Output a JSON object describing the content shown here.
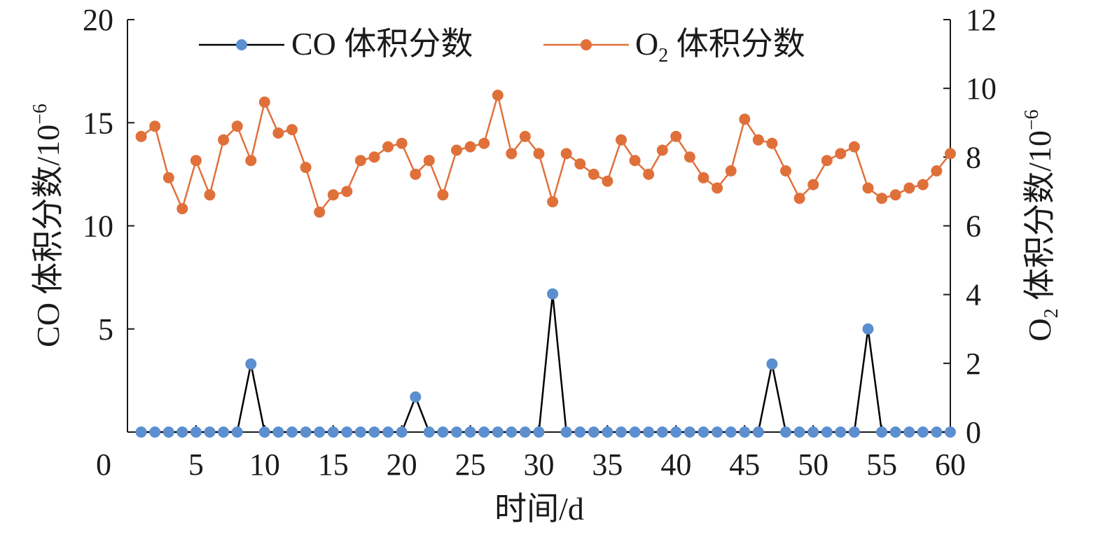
{
  "chart_data": {
    "type": "line",
    "x": [
      1,
      2,
      3,
      4,
      5,
      6,
      7,
      8,
      9,
      10,
      11,
      12,
      13,
      14,
      15,
      16,
      17,
      18,
      19,
      20,
      21,
      22,
      23,
      24,
      25,
      26,
      27,
      28,
      29,
      30,
      31,
      32,
      33,
      34,
      35,
      36,
      37,
      38,
      39,
      40,
      41,
      42,
      43,
      44,
      45,
      46,
      47,
      48,
      49,
      50,
      51,
      52,
      53,
      54,
      55,
      56,
      57,
      58,
      59,
      60
    ],
    "xlabel": "时间/d",
    "xlim": [
      0,
      60
    ],
    "x_ticks": [
      "0",
      "5",
      "10",
      "15",
      "20",
      "25",
      "30",
      "35",
      "40",
      "45",
      "50",
      "55",
      "60"
    ],
    "y_left": {
      "label": "CO 体积分数/10",
      "label_sup": "−6",
      "lim": [
        0,
        20
      ],
      "ticks": [
        "5",
        "10",
        "15",
        "20"
      ]
    },
    "y_right": {
      "label_main": "O",
      "label_sub": "2",
      "label_rest": " 体积分数/10",
      "label_sup": "−6",
      "lim": [
        0,
        12
      ],
      "ticks": [
        "0",
        "2",
        "4",
        "6",
        "8",
        "10",
        "12"
      ]
    },
    "series": [
      {
        "name": "CO 体积分数",
        "axis": "left",
        "color": "#000000",
        "marker_color": "#5b8fcf",
        "values": [
          0,
          0,
          0,
          0,
          0,
          0,
          0,
          0,
          3.3,
          0,
          0,
          0,
          0,
          0,
          0,
          0,
          0,
          0,
          0,
          0,
          1.7,
          0,
          0,
          0,
          0,
          0,
          0,
          0,
          0,
          0,
          6.7,
          0,
          0,
          0,
          0,
          0,
          0,
          0,
          0,
          0,
          0,
          0,
          0,
          0,
          0,
          0,
          3.3,
          0,
          0,
          0,
          0,
          0,
          0,
          5.0,
          0,
          0,
          0,
          0,
          0,
          0
        ]
      },
      {
        "name_main": "O",
        "name_sub": "2",
        "name_rest": " 体积分数",
        "axis": "right",
        "color": "#e0703a",
        "marker_color": "#e0703a",
        "values": [
          8.6,
          8.9,
          7.4,
          6.5,
          7.9,
          6.9,
          8.5,
          8.9,
          7.9,
          9.6,
          8.7,
          8.8,
          7.7,
          6.4,
          6.9,
          7.0,
          7.9,
          8.0,
          8.3,
          8.4,
          7.5,
          7.9,
          6.9,
          8.2,
          8.3,
          8.4,
          9.8,
          8.1,
          8.6,
          8.1,
          6.7,
          8.1,
          7.8,
          7.5,
          7.3,
          8.5,
          7.9,
          7.5,
          8.2,
          8.6,
          8.0,
          7.4,
          7.1,
          7.6,
          9.1,
          8.5,
          8.4,
          7.6,
          6.8,
          7.2,
          7.9,
          8.1,
          8.3,
          7.1,
          6.8,
          6.9,
          7.1,
          7.2,
          7.6,
          8.1
        ]
      }
    ]
  }
}
